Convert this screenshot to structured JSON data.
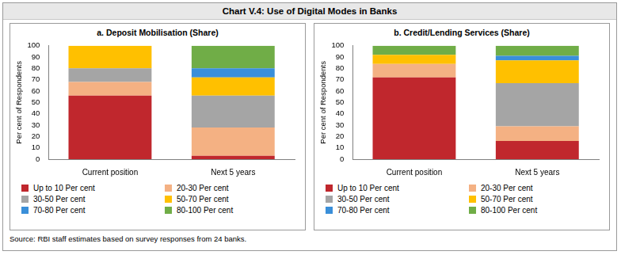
{
  "title": "Chart V.4: Use of Digital Modes in Banks",
  "source": "Source: RBI staff estimates based on survey responses from 24 banks.",
  "chart_data": [
    {
      "type": "bar",
      "title": "a. Deposit Mobilisation (Share)",
      "y_label": "Per cent of Respondents",
      "categories": [
        "Current position",
        "Next 5 years"
      ],
      "series": [
        {
          "name": "Up to 10 Per cent",
          "color": "#c0272d",
          "values": [
            56,
            3
          ]
        },
        {
          "name": "20-30 Per cent",
          "color": "#f4b183",
          "values": [
            12,
            25
          ]
        },
        {
          "name": "30-50 Per cent",
          "color": "#a5a5a5",
          "values": [
            12,
            28
          ]
        },
        {
          "name": "50-70 Per cent",
          "color": "#ffc000",
          "values": [
            20,
            16
          ]
        },
        {
          "name": "70-80 Per cent",
          "color": "#3a8fd9",
          "values": [
            0,
            8
          ]
        },
        {
          "name": "80-100 Per cent",
          "color": "#70ad47",
          "values": [
            0,
            20
          ]
        }
      ],
      "stacked": true,
      "grid": false,
      "legend": "bottom",
      "ylim": [
        0,
        100
      ],
      "yticks": [
        0,
        10,
        20,
        30,
        40,
        50,
        60,
        70,
        80,
        90,
        100
      ]
    },
    {
      "type": "bar",
      "title": "b. Credit/Lending Services (Share)",
      "y_label": "Per cent of Respondents",
      "categories": [
        "Current position",
        "Next 5 years"
      ],
      "series": [
        {
          "name": "Up to 10 Per cent",
          "color": "#c0272d",
          "values": [
            72,
            16
          ]
        },
        {
          "name": "20-30 Per cent",
          "color": "#f4b183",
          "values": [
            12,
            13
          ]
        },
        {
          "name": "30-50 Per cent",
          "color": "#a5a5a5",
          "values": [
            0,
            38
          ]
        },
        {
          "name": "50-70 Per cent",
          "color": "#ffc000",
          "values": [
            8,
            20
          ]
        },
        {
          "name": "70-80 Per cent",
          "color": "#3a8fd9",
          "values": [
            0,
            4
          ]
        },
        {
          "name": "80-100 Per cent",
          "color": "#70ad47",
          "values": [
            8,
            9
          ]
        }
      ],
      "stacked": true,
      "grid": false,
      "legend": "bottom",
      "ylim": [
        0,
        100
      ],
      "yticks": [
        0,
        10,
        20,
        30,
        40,
        50,
        60,
        70,
        80,
        90,
        100
      ]
    }
  ]
}
